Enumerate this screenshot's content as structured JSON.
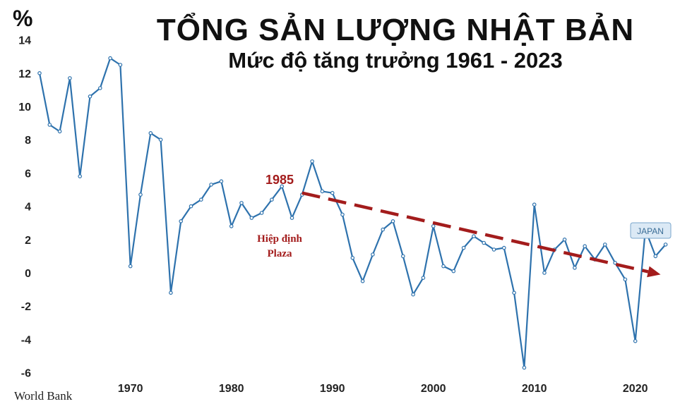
{
  "chart_data": {
    "type": "line",
    "title": "TỔNG SẢN LƯỢNG NHẬT BẢN",
    "subtitle": "Mức độ tăng trưởng 1961 - 2023",
    "ylabel": "%",
    "source": "World Bank",
    "ylim": [
      -6.5,
      14.5
    ],
    "xlim": [
      1960.5,
      2024.5
    ],
    "yticks": [
      14,
      12,
      10,
      8,
      6,
      4,
      2,
      0,
      -2,
      -4,
      -6
    ],
    "xticks": [
      1970,
      1980,
      1990,
      2000,
      2010,
      2020
    ],
    "series": [
      {
        "name": "JAPAN",
        "color": "#2e72ad",
        "x": [
          1961,
          1962,
          1963,
          1964,
          1965,
          1966,
          1967,
          1968,
          1969,
          1970,
          1971,
          1972,
          1973,
          1974,
          1975,
          1976,
          1977,
          1978,
          1979,
          1980,
          1981,
          1982,
          1983,
          1984,
          1985,
          1986,
          1987,
          1988,
          1989,
          1990,
          1991,
          1992,
          1993,
          1994,
          1995,
          1996,
          1997,
          1998,
          1999,
          2000,
          2001,
          2002,
          2003,
          2004,
          2005,
          2006,
          2007,
          2008,
          2009,
          2010,
          2011,
          2012,
          2013,
          2014,
          2015,
          2016,
          2017,
          2018,
          2019,
          2020,
          2021,
          2022,
          2023
        ],
        "values": [
          12.0,
          8.9,
          8.5,
          11.7,
          5.8,
          10.6,
          11.1,
          12.9,
          12.5,
          0.4,
          4.7,
          8.4,
          8.0,
          -1.2,
          3.1,
          4.0,
          4.4,
          5.3,
          5.5,
          2.8,
          4.2,
          3.3,
          3.6,
          4.4,
          5.2,
          3.3,
          4.7,
          6.7,
          4.9,
          4.8,
          3.5,
          0.9,
          -0.5,
          1.1,
          2.6,
          3.1,
          1.0,
          -1.3,
          -0.3,
          2.8,
          0.4,
          0.1,
          1.5,
          2.2,
          1.8,
          1.4,
          1.5,
          -1.2,
          -5.7,
          4.1,
          0.0,
          1.4,
          2.0,
          0.3,
          1.6,
          0.8,
          1.7,
          0.6,
          -0.4,
          -4.1,
          2.6,
          1.0,
          1.7
        ]
      }
    ],
    "trend": {
      "x": [
        1987,
        2022.5
      ],
      "y": [
        4.8,
        -0.1
      ],
      "color": "#a31c1c"
    },
    "annotations": {
      "year": "1985",
      "event_line1": "Hiệp định",
      "event_line2": "Plaza"
    },
    "legend": "JAPAN"
  }
}
